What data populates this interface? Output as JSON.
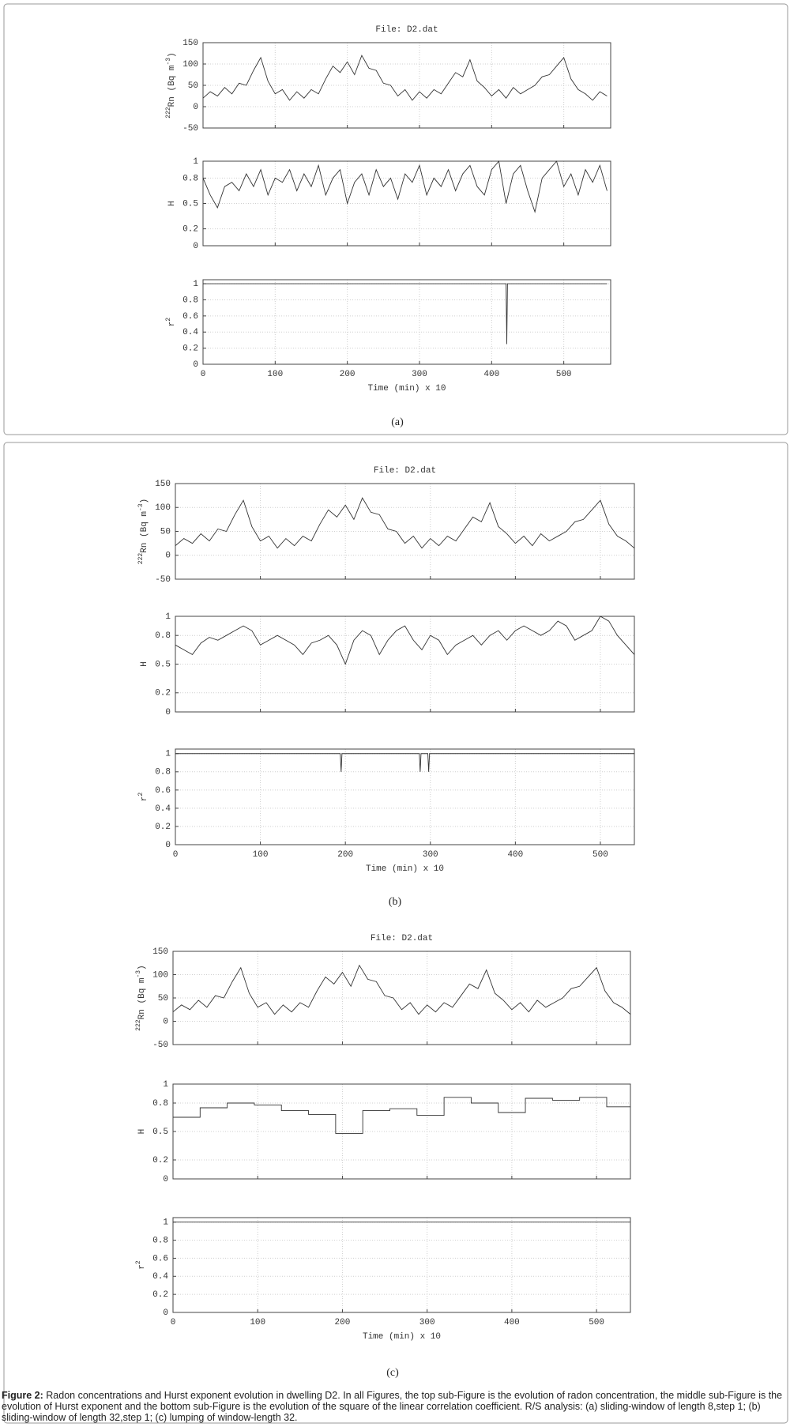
{
  "chart_data": [
    {
      "type": "line",
      "title": "File: D2.dat",
      "ylabel": [
        {
          "text": "222",
          "sup": true
        },
        {
          "text": "Rn (Bq m"
        },
        {
          "text": "-3",
          "sup": true
        },
        {
          "text": ")"
        }
      ],
      "x": [
        0,
        10,
        20,
        30,
        40,
        50,
        60,
        70,
        80,
        90,
        100,
        110,
        120,
        130,
        140,
        150,
        160,
        170,
        180,
        190,
        200,
        210,
        220,
        230,
        240,
        250,
        260,
        270,
        280,
        290,
        300,
        310,
        320,
        330,
        340,
        350,
        360,
        370,
        380,
        390,
        400,
        410,
        420,
        430,
        440,
        450,
        460,
        470,
        480,
        490,
        500,
        510,
        520,
        530,
        540,
        550,
        560
      ],
      "values": [
        20,
        35,
        25,
        45,
        30,
        55,
        50,
        85,
        115,
        60,
        30,
        40,
        15,
        35,
        20,
        40,
        30,
        65,
        95,
        80,
        105,
        75,
        120,
        90,
        85,
        55,
        50,
        25,
        40,
        15,
        35,
        20,
        40,
        30,
        55,
        80,
        70,
        110,
        60,
        45,
        25,
        40,
        20,
        45,
        30,
        40,
        50,
        70,
        75,
        95,
        115,
        65,
        40,
        30,
        15,
        35,
        25
      ],
      "color": "#333333",
      "xlim": [
        0,
        565
      ],
      "ylim": [
        -50,
        150
      ],
      "xticks": [
        0,
        100,
        200,
        300,
        400,
        500
      ],
      "yticks": [
        -50,
        0,
        50,
        100,
        150
      ],
      "grid": true
    },
    {
      "type": "line",
      "ylabel": [
        {
          "text": "H"
        }
      ],
      "x": [
        0,
        10,
        20,
        30,
        40,
        50,
        60,
        70,
        80,
        90,
        100,
        110,
        120,
        130,
        140,
        150,
        160,
        170,
        180,
        190,
        200,
        210,
        220,
        230,
        240,
        250,
        260,
        270,
        280,
        290,
        300,
        310,
        320,
        330,
        340,
        350,
        360,
        370,
        380,
        390,
        400,
        410,
        420,
        430,
        440,
        450,
        460,
        470,
        480,
        490,
        500,
        510,
        520,
        530,
        540,
        550,
        560
      ],
      "values": [
        0.8,
        0.6,
        0.45,
        0.7,
        0.75,
        0.65,
        0.85,
        0.7,
        0.9,
        0.6,
        0.8,
        0.75,
        0.9,
        0.65,
        0.85,
        0.7,
        0.95,
        0.6,
        0.8,
        0.9,
        0.5,
        0.75,
        0.85,
        0.6,
        0.9,
        0.7,
        0.8,
        0.55,
        0.85,
        0.75,
        0.95,
        0.6,
        0.8,
        0.7,
        0.9,
        0.65,
        0.85,
        0.95,
        0.7,
        0.6,
        0.9,
        1,
        0.5,
        0.85,
        0.95,
        0.65,
        0.4,
        0.8,
        0.9,
        1,
        0.7,
        0.85,
        0.6,
        0.9,
        0.75,
        0.95,
        0.65
      ],
      "color": "#333333",
      "xlim": [
        0,
        565
      ],
      "ylim": [
        0,
        1
      ],
      "xticks": [
        0,
        100,
        200,
        300,
        400,
        500
      ],
      "yticks": [
        0,
        0.2,
        0.5,
        0.8,
        1
      ],
      "grid": true
    },
    {
      "type": "line",
      "ylabel": [
        {
          "text": "r"
        },
        {
          "text": "2",
          "sup": true
        }
      ],
      "xlabel": "Time (min) x 10",
      "x": [
        0,
        420,
        421,
        422,
        560
      ],
      "values": [
        1,
        1,
        0.25,
        1,
        1
      ],
      "color": "#333333",
      "xlim": [
        0,
        565
      ],
      "ylim": [
        0,
        1.05
      ],
      "xticks": [
        0,
        100,
        200,
        300,
        400,
        500
      ],
      "yticks": [
        0,
        0.2,
        0.4,
        0.6,
        0.8,
        1
      ],
      "grid": true
    },
    {
      "type": "line",
      "title": "File: D2.dat",
      "ylabel": [
        {
          "text": "222",
          "sup": true
        },
        {
          "text": "Rn (Bq m"
        },
        {
          "text": "-3",
          "sup": true
        },
        {
          "text": ")"
        }
      ],
      "x": [
        0,
        10,
        20,
        30,
        40,
        50,
        60,
        70,
        80,
        90,
        100,
        110,
        120,
        130,
        140,
        150,
        160,
        170,
        180,
        190,
        200,
        210,
        220,
        230,
        240,
        250,
        260,
        270,
        280,
        290,
        300,
        310,
        320,
        330,
        340,
        350,
        360,
        370,
        380,
        390,
        400,
        410,
        420,
        430,
        440,
        450,
        460,
        470,
        480,
        490,
        500,
        510,
        520,
        530,
        540
      ],
      "values": [
        20,
        35,
        25,
        45,
        30,
        55,
        50,
        85,
        115,
        60,
        30,
        40,
        15,
        35,
        20,
        40,
        30,
        65,
        95,
        80,
        105,
        75,
        120,
        90,
        85,
        55,
        50,
        25,
        40,
        15,
        35,
        20,
        40,
        30,
        55,
        80,
        70,
        110,
        60,
        45,
        25,
        40,
        20,
        45,
        30,
        40,
        50,
        70,
        75,
        95,
        115,
        65,
        40,
        30,
        15
      ],
      "color": "#333333",
      "xlim": [
        0,
        540
      ],
      "ylim": [
        -50,
        150
      ],
      "xticks": [
        0,
        100,
        200,
        300,
        400,
        500
      ],
      "yticks": [
        -50,
        0,
        50,
        100,
        150
      ],
      "grid": true
    },
    {
      "type": "line",
      "ylabel": [
        {
          "text": "H"
        }
      ],
      "x": [
        0,
        10,
        20,
        30,
        40,
        50,
        60,
        70,
        80,
        90,
        100,
        110,
        120,
        130,
        140,
        150,
        160,
        170,
        180,
        190,
        200,
        210,
        220,
        230,
        240,
        250,
        260,
        270,
        280,
        290,
        300,
        310,
        320,
        330,
        340,
        350,
        360,
        370,
        380,
        390,
        400,
        410,
        420,
        430,
        440,
        450,
        460,
        470,
        480,
        490,
        500,
        510,
        520,
        530,
        540
      ],
      "values": [
        0.7,
        0.65,
        0.6,
        0.72,
        0.78,
        0.75,
        0.8,
        0.85,
        0.9,
        0.85,
        0.7,
        0.75,
        0.8,
        0.75,
        0.7,
        0.6,
        0.72,
        0.75,
        0.8,
        0.7,
        0.5,
        0.75,
        0.85,
        0.8,
        0.6,
        0.75,
        0.85,
        0.9,
        0.75,
        0.65,
        0.8,
        0.75,
        0.6,
        0.7,
        0.75,
        0.8,
        0.7,
        0.8,
        0.85,
        0.75,
        0.85,
        0.9,
        0.85,
        0.8,
        0.85,
        0.95,
        0.9,
        0.75,
        0.8,
        0.85,
        1,
        0.95,
        0.8,
        0.7,
        0.6
      ],
      "color": "#333333",
      "xlim": [
        0,
        540
      ],
      "ylim": [
        0,
        1
      ],
      "xticks": [
        0,
        100,
        200,
        300,
        400,
        500
      ],
      "yticks": [
        0,
        0.2,
        0.5,
        0.8,
        1
      ],
      "grid": true
    },
    {
      "type": "line",
      "ylabel": [
        {
          "text": "r"
        },
        {
          "text": "2",
          "sup": true
        }
      ],
      "xlabel": "Time (min) x 10",
      "x": [
        0,
        194,
        195,
        196,
        287,
        288,
        289,
        297,
        298,
        299,
        540
      ],
      "values": [
        1,
        1,
        0.8,
        1,
        1,
        0.8,
        1,
        1,
        0.8,
        1,
        1
      ],
      "color": "#333333",
      "xlim": [
        0,
        540
      ],
      "ylim": [
        0,
        1.05
      ],
      "xticks": [
        0,
        100,
        200,
        300,
        400,
        500
      ],
      "yticks": [
        0,
        0.2,
        0.4,
        0.6,
        0.8,
        1
      ],
      "grid": true
    },
    {
      "type": "line",
      "title": "File: D2.dat",
      "ylabel": [
        {
          "text": "222",
          "sup": true
        },
        {
          "text": "Rn (Bq m"
        },
        {
          "text": "-3",
          "sup": true
        },
        {
          "text": ")"
        }
      ],
      "x": [
        0,
        10,
        20,
        30,
        40,
        50,
        60,
        70,
        80,
        90,
        100,
        110,
        120,
        130,
        140,
        150,
        160,
        170,
        180,
        190,
        200,
        210,
        220,
        230,
        240,
        250,
        260,
        270,
        280,
        290,
        300,
        310,
        320,
        330,
        340,
        350,
        360,
        370,
        380,
        390,
        400,
        410,
        420,
        430,
        440,
        450,
        460,
        470,
        480,
        490,
        500,
        510,
        520,
        530,
        540
      ],
      "values": [
        20,
        35,
        25,
        45,
        30,
        55,
        50,
        85,
        115,
        60,
        30,
        40,
        15,
        35,
        20,
        40,
        30,
        65,
        95,
        80,
        105,
        75,
        120,
        90,
        85,
        55,
        50,
        25,
        40,
        15,
        35,
        20,
        40,
        30,
        55,
        80,
        70,
        110,
        60,
        45,
        25,
        40,
        20,
        45,
        30,
        40,
        50,
        70,
        75,
        95,
        115,
        65,
        40,
        30,
        15
      ],
      "color": "#333333",
      "xlim": [
        0,
        540
      ],
      "ylim": [
        -50,
        150
      ],
      "xticks": [
        0,
        100,
        200,
        300,
        400,
        500
      ],
      "yticks": [
        -50,
        0,
        50,
        100,
        150
      ],
      "grid": true
    },
    {
      "type": "line",
      "ylabel": [
        {
          "text": "H"
        }
      ],
      "x": [
        0,
        32,
        32,
        64,
        64,
        96,
        96,
        128,
        128,
        160,
        160,
        192,
        192,
        224,
        224,
        256,
        256,
        288,
        288,
        320,
        320,
        352,
        352,
        384,
        384,
        416,
        416,
        448,
        448,
        480,
        480,
        512,
        512,
        540
      ],
      "values": [
        0.65,
        0.65,
        0.75,
        0.75,
        0.8,
        0.8,
        0.78,
        0.78,
        0.72,
        0.72,
        0.68,
        0.68,
        0.48,
        0.48,
        0.72,
        0.72,
        0.74,
        0.74,
        0.67,
        0.67,
        0.86,
        0.86,
        0.8,
        0.8,
        0.7,
        0.7,
        0.85,
        0.85,
        0.83,
        0.83,
        0.86,
        0.86,
        0.76,
        0.76
      ],
      "color": "#333333",
      "xlim": [
        0,
        540
      ],
      "ylim": [
        0,
        1
      ],
      "xticks": [
        0,
        100,
        200,
        300,
        400,
        500
      ],
      "yticks": [
        0,
        0.2,
        0.5,
        0.8,
        1
      ],
      "grid": true
    },
    {
      "type": "line",
      "ylabel": [
        {
          "text": "r"
        },
        {
          "text": "2",
          "sup": true
        }
      ],
      "xlabel": "Time (min) x 10",
      "x": [
        0,
        540
      ],
      "values": [
        1,
        1
      ],
      "color": "#333333",
      "xlim": [
        0,
        540
      ],
      "ylim": [
        0,
        1.05
      ],
      "xticks": [
        0,
        100,
        200,
        300,
        400,
        500
      ],
      "yticks": [
        0,
        0.2,
        0.4,
        0.6,
        0.8,
        1
      ],
      "grid": true
    }
  ],
  "panel_labels": [
    "(a)",
    "(b)",
    "(c)"
  ],
  "caption": {
    "label": "Figure 2:",
    "text": "Radon concentrations and Hurst exponent evolution in dwelling D2. In all Figures, the top sub-Figure is the evolution of radon concentration, the middle sub-Figure is the evolution of Hurst exponent and the bottom sub-Figure is the evolution of the square of the linear correlation coefficient. R/S analysis: (a) sliding-window of length 8,step 1; (b) sliding-window of length 32,step 1; (c) lumping of  window-length 32."
  }
}
